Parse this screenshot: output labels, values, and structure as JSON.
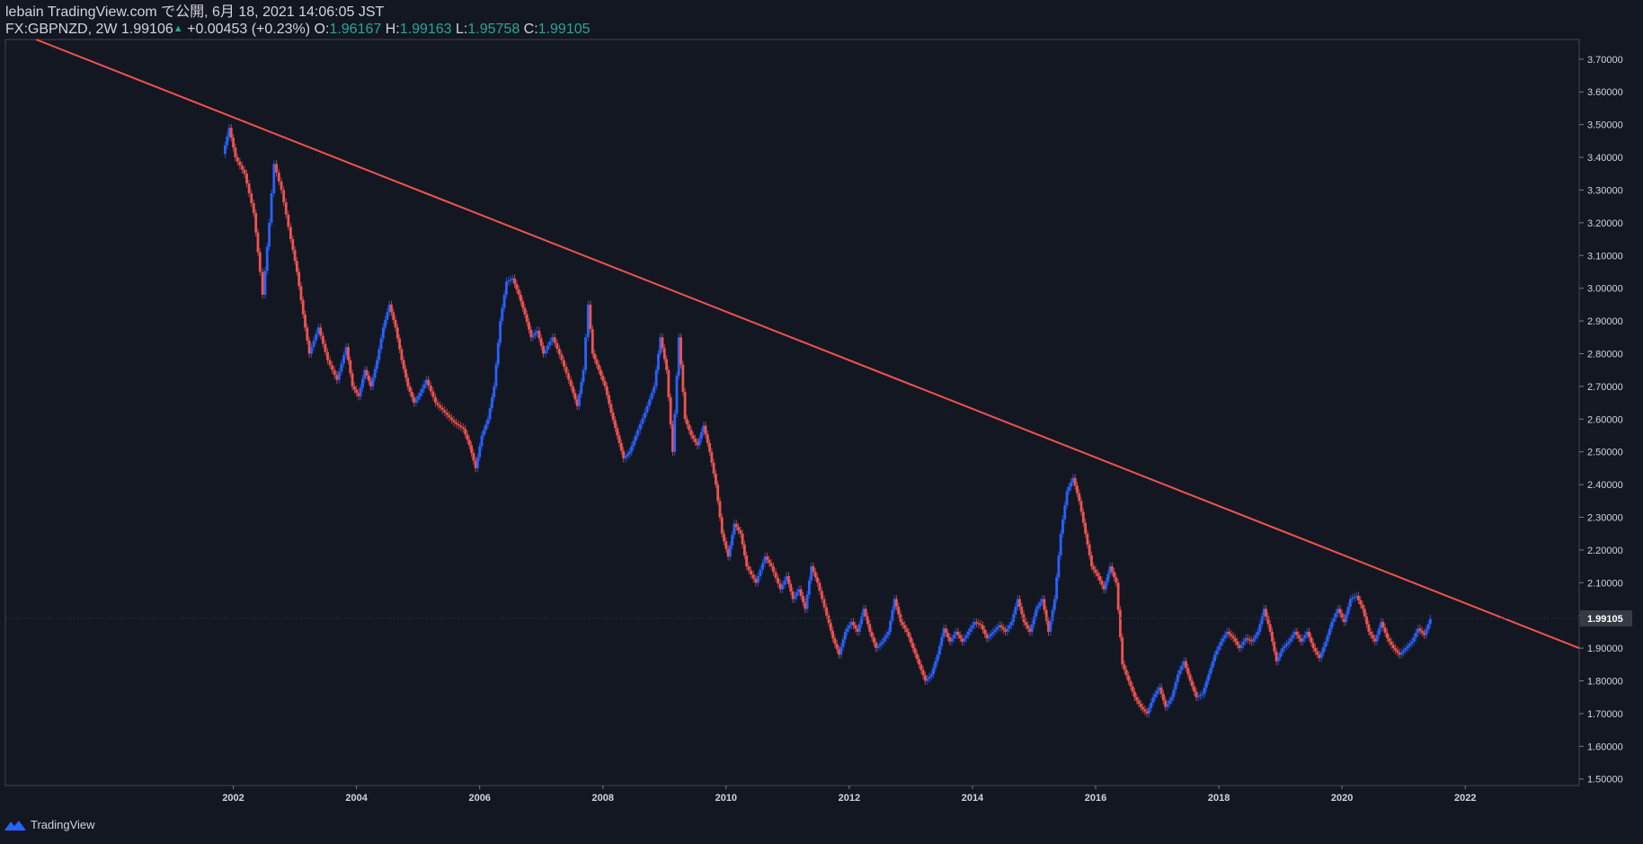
{
  "header": {
    "publisher": "lebain TradingView.com で公開, 6月 18, 2021 14:06:05 JST",
    "symbol": "FX:GBPNZD, 2W",
    "last": "1.99106",
    "change": "+0.00453 (+0.23%)",
    "o_label": "O:",
    "o_value": "1.96167",
    "h_label": "H:",
    "h_value": "1.99163",
    "l_label": "L:",
    "l_value": "1.95758",
    "c_label": "C:",
    "c_value": "1.99105"
  },
  "footer": {
    "brand": "TradingView"
  },
  "colors": {
    "background": "#131722",
    "up": "#2962ff",
    "down": "#ef5350",
    "trendline": "#f05350",
    "text": "#d1d4dc",
    "axis": "#787b86",
    "price_label_bg": "#363a45"
  },
  "chart_data": {
    "type": "line",
    "title": "",
    "symbol": "FX:GBPNZD",
    "interval": "2W",
    "x_ticks": [
      2002,
      2004,
      2006,
      2008,
      2010,
      2012,
      2014,
      2016,
      2018,
      2020,
      2022
    ],
    "xlim": [
      1998.3,
      2023.85
    ],
    "y_ticks": [
      "1.50000",
      "1.60000",
      "1.70000",
      "1.80000",
      "1.90000",
      "2.00000",
      "2.10000",
      "2.20000",
      "2.30000",
      "2.40000",
      "2.50000",
      "2.60000",
      "2.70000",
      "2.80000",
      "2.90000",
      "3.00000",
      "3.10000",
      "3.20000",
      "3.30000",
      "3.40000",
      "3.50000",
      "3.60000",
      "3.70000"
    ],
    "ylim": [
      1.48,
      3.76
    ],
    "grid": false,
    "last_price_label": "1.99105",
    "last_price": 1.99105,
    "series": [
      {
        "values": [
          [
            2001.85,
            3.41
          ],
          [
            2001.95,
            3.49
          ],
          [
            2002.05,
            3.4
          ],
          [
            2002.2,
            3.35
          ],
          [
            2002.35,
            3.23
          ],
          [
            2002.45,
            3.05
          ],
          [
            2002.5,
            2.98
          ],
          [
            2002.6,
            3.2
          ],
          [
            2002.68,
            3.38
          ],
          [
            2002.8,
            3.3
          ],
          [
            2002.95,
            3.15
          ],
          [
            2003.05,
            3.05
          ],
          [
            2003.15,
            2.92
          ],
          [
            2003.25,
            2.8
          ],
          [
            2003.4,
            2.88
          ],
          [
            2003.55,
            2.78
          ],
          [
            2003.7,
            2.72
          ],
          [
            2003.85,
            2.82
          ],
          [
            2003.95,
            2.7
          ],
          [
            2004.05,
            2.67
          ],
          [
            2004.15,
            2.75
          ],
          [
            2004.25,
            2.7
          ],
          [
            2004.35,
            2.78
          ],
          [
            2004.45,
            2.88
          ],
          [
            2004.55,
            2.95
          ],
          [
            2004.65,
            2.88
          ],
          [
            2004.75,
            2.78
          ],
          [
            2004.85,
            2.7
          ],
          [
            2004.95,
            2.65
          ],
          [
            2005.05,
            2.68
          ],
          [
            2005.15,
            2.72
          ],
          [
            2005.3,
            2.65
          ],
          [
            2005.45,
            2.62
          ],
          [
            2005.6,
            2.59
          ],
          [
            2005.75,
            2.57
          ],
          [
            2005.85,
            2.52
          ],
          [
            2005.95,
            2.45
          ],
          [
            2006.05,
            2.55
          ],
          [
            2006.15,
            2.6
          ],
          [
            2006.25,
            2.7
          ],
          [
            2006.35,
            2.9
          ],
          [
            2006.45,
            3.02
          ],
          [
            2006.55,
            3.03
          ],
          [
            2006.65,
            2.98
          ],
          [
            2006.75,
            2.92
          ],
          [
            2006.85,
            2.85
          ],
          [
            2006.95,
            2.87
          ],
          [
            2007.05,
            2.8
          ],
          [
            2007.2,
            2.85
          ],
          [
            2007.35,
            2.78
          ],
          [
            2007.5,
            2.7
          ],
          [
            2007.6,
            2.64
          ],
          [
            2007.7,
            2.75
          ],
          [
            2007.78,
            2.95
          ],
          [
            2007.85,
            2.8
          ],
          [
            2007.95,
            2.75
          ],
          [
            2008.05,
            2.7
          ],
          [
            2008.15,
            2.62
          ],
          [
            2008.25,
            2.55
          ],
          [
            2008.35,
            2.48
          ],
          [
            2008.45,
            2.5
          ],
          [
            2008.55,
            2.55
          ],
          [
            2008.7,
            2.62
          ],
          [
            2008.85,
            2.7
          ],
          [
            2008.95,
            2.85
          ],
          [
            2009.05,
            2.75
          ],
          [
            2009.15,
            2.5
          ],
          [
            2009.25,
            2.85
          ],
          [
            2009.35,
            2.6
          ],
          [
            2009.45,
            2.55
          ],
          [
            2009.55,
            2.52
          ],
          [
            2009.65,
            2.58
          ],
          [
            2009.75,
            2.5
          ],
          [
            2009.85,
            2.4
          ],
          [
            2009.95,
            2.25
          ],
          [
            2010.05,
            2.18
          ],
          [
            2010.15,
            2.28
          ],
          [
            2010.25,
            2.25
          ],
          [
            2010.35,
            2.15
          ],
          [
            2010.5,
            2.1
          ],
          [
            2010.65,
            2.18
          ],
          [
            2010.75,
            2.15
          ],
          [
            2010.9,
            2.08
          ],
          [
            2011.0,
            2.12
          ],
          [
            2011.1,
            2.05
          ],
          [
            2011.2,
            2.08
          ],
          [
            2011.3,
            2.02
          ],
          [
            2011.4,
            2.15
          ],
          [
            2011.5,
            2.1
          ],
          [
            2011.65,
            2.0
          ],
          [
            2011.75,
            1.93
          ],
          [
            2011.85,
            1.88
          ],
          [
            2011.95,
            1.95
          ],
          [
            2012.05,
            1.98
          ],
          [
            2012.15,
            1.95
          ],
          [
            2012.25,
            2.02
          ],
          [
            2012.35,
            1.95
          ],
          [
            2012.45,
            1.9
          ],
          [
            2012.55,
            1.92
          ],
          [
            2012.65,
            1.95
          ],
          [
            2012.75,
            2.05
          ],
          [
            2012.85,
            1.98
          ],
          [
            2012.95,
            1.95
          ],
          [
            2013.05,
            1.9
          ],
          [
            2013.15,
            1.85
          ],
          [
            2013.25,
            1.8
          ],
          [
            2013.35,
            1.82
          ],
          [
            2013.45,
            1.88
          ],
          [
            2013.55,
            1.96
          ],
          [
            2013.65,
            1.92
          ],
          [
            2013.75,
            1.95
          ],
          [
            2013.85,
            1.92
          ],
          [
            2013.95,
            1.95
          ],
          [
            2014.05,
            1.98
          ],
          [
            2014.15,
            1.97
          ],
          [
            2014.25,
            1.93
          ],
          [
            2014.35,
            1.95
          ],
          [
            2014.45,
            1.97
          ],
          [
            2014.55,
            1.95
          ],
          [
            2014.65,
            1.98
          ],
          [
            2014.75,
            2.05
          ],
          [
            2014.85,
            1.98
          ],
          [
            2014.95,
            1.95
          ],
          [
            2015.05,
            2.02
          ],
          [
            2015.15,
            2.05
          ],
          [
            2015.25,
            1.95
          ],
          [
            2015.35,
            2.05
          ],
          [
            2015.45,
            2.25
          ],
          [
            2015.55,
            2.38
          ],
          [
            2015.65,
            2.42
          ],
          [
            2015.75,
            2.35
          ],
          [
            2015.85,
            2.25
          ],
          [
            2015.95,
            2.15
          ],
          [
            2016.05,
            2.12
          ],
          [
            2016.15,
            2.08
          ],
          [
            2016.25,
            2.15
          ],
          [
            2016.35,
            2.1
          ],
          [
            2016.45,
            1.85
          ],
          [
            2016.55,
            1.8
          ],
          [
            2016.65,
            1.75
          ],
          [
            2016.75,
            1.72
          ],
          [
            2016.85,
            1.7
          ],
          [
            2016.95,
            1.75
          ],
          [
            2017.05,
            1.78
          ],
          [
            2017.15,
            1.72
          ],
          [
            2017.25,
            1.75
          ],
          [
            2017.35,
            1.82
          ],
          [
            2017.45,
            1.86
          ],
          [
            2017.55,
            1.8
          ],
          [
            2017.65,
            1.75
          ],
          [
            2017.75,
            1.76
          ],
          [
            2017.85,
            1.82
          ],
          [
            2017.95,
            1.88
          ],
          [
            2018.05,
            1.92
          ],
          [
            2018.15,
            1.95
          ],
          [
            2018.25,
            1.93
          ],
          [
            2018.35,
            1.9
          ],
          [
            2018.45,
            1.93
          ],
          [
            2018.55,
            1.92
          ],
          [
            2018.65,
            1.95
          ],
          [
            2018.75,
            2.02
          ],
          [
            2018.85,
            1.95
          ],
          [
            2018.95,
            1.86
          ],
          [
            2019.05,
            1.9
          ],
          [
            2019.15,
            1.92
          ],
          [
            2019.25,
            1.95
          ],
          [
            2019.35,
            1.92
          ],
          [
            2019.45,
            1.95
          ],
          [
            2019.55,
            1.9
          ],
          [
            2019.65,
            1.87
          ],
          [
            2019.75,
            1.92
          ],
          [
            2019.85,
            1.98
          ],
          [
            2019.95,
            2.02
          ],
          [
            2020.05,
            1.98
          ],
          [
            2020.15,
            2.05
          ],
          [
            2020.25,
            2.06
          ],
          [
            2020.35,
            2.02
          ],
          [
            2020.45,
            1.95
          ],
          [
            2020.55,
            1.92
          ],
          [
            2020.65,
            1.98
          ],
          [
            2020.75,
            1.93
          ],
          [
            2020.85,
            1.9
          ],
          [
            2020.95,
            1.88
          ],
          [
            2021.05,
            1.9
          ],
          [
            2021.15,
            1.92
          ],
          [
            2021.25,
            1.96
          ],
          [
            2021.35,
            1.94
          ],
          [
            2021.45,
            1.99
          ]
        ]
      }
    ],
    "trendline": [
      [
        1998.8,
        3.76
      ],
      [
        2023.85,
        1.9
      ]
    ]
  }
}
